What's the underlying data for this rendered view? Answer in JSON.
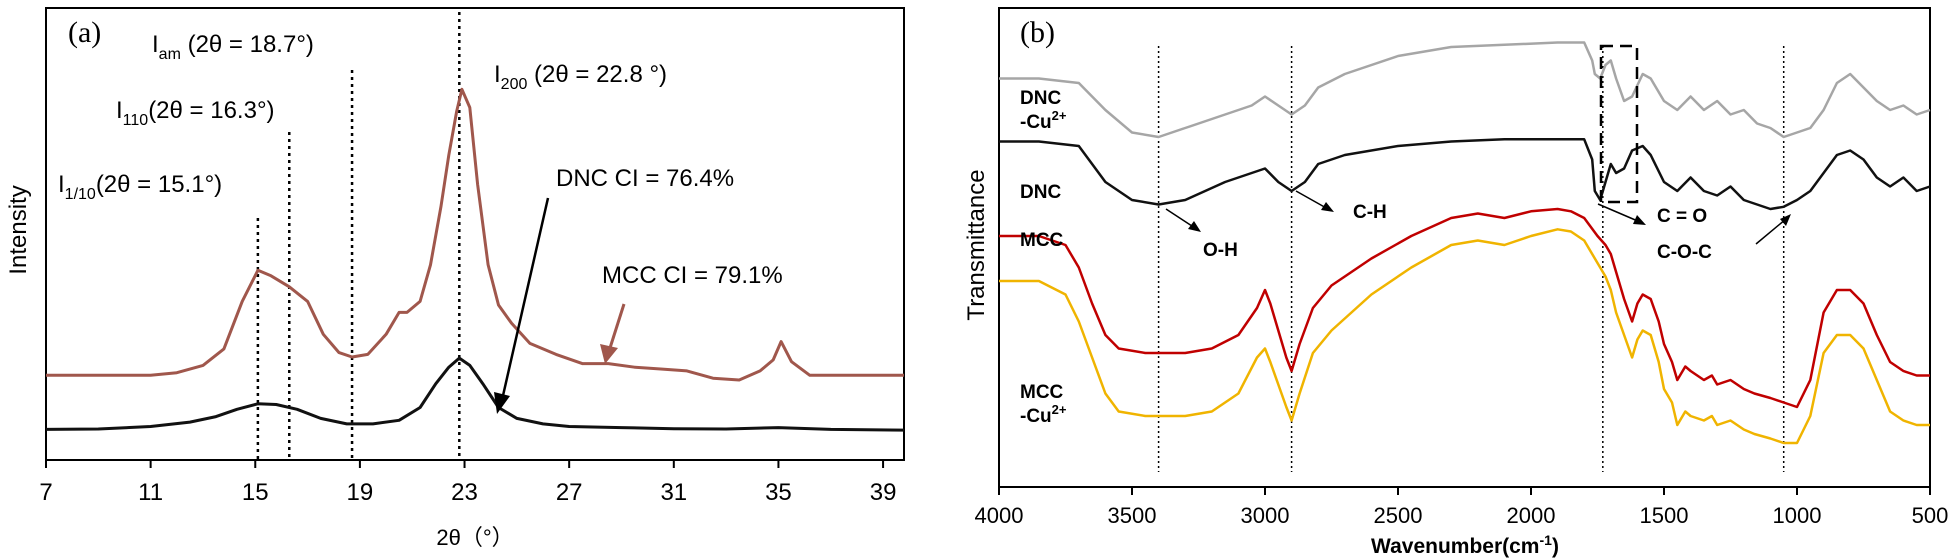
{
  "chart_data": [
    {
      "id": "a",
      "type": "line",
      "panel_label": "(a)",
      "xlabel": "2θ（°）",
      "ylabel": "Intensity",
      "xlim": [
        7,
        39.8
      ],
      "ylim": [
        0,
        1
      ],
      "x_ticks": [
        7,
        11,
        15,
        19,
        23,
        27,
        31,
        35,
        39
      ],
      "peak_markers": [
        {
          "x": 15.1,
          "label_main": "I",
          "label_sub": "1/10",
          "label_rest": "(2θ = 15.1°)"
        },
        {
          "x": 16.3,
          "label_main": "I",
          "label_sub": "110",
          "label_rest": "(2θ = 16.3°)"
        },
        {
          "x": 18.7,
          "label_main": "I",
          "label_sub": "am",
          "label_rest": " (2θ = 18.7°)"
        },
        {
          "x": 22.8,
          "label_main": "I",
          "label_sub": "200",
          "label_rest": " (2θ = 22.8 °)"
        }
      ],
      "series": [
        {
          "name": "MCC",
          "color": "#a0574c",
          "annotation": "MCC  CI = 79.1%",
          "x": [
            7,
            9,
            11,
            12,
            13,
            13.8,
            14.5,
            15.1,
            15.6,
            16.3,
            17,
            17.6,
            18.2,
            18.7,
            19.3,
            20,
            20.5,
            20.8,
            21.3,
            21.7,
            22.1,
            22.4,
            22.7,
            22.9,
            23.2,
            23.5,
            23.9,
            24.3,
            24.8,
            25.5,
            26.5,
            27.5,
            28.5,
            29.5,
            30.5,
            31.5,
            32.5,
            33.5,
            34.3,
            34.8,
            35.1,
            35.5,
            36.2,
            37,
            38,
            39,
            39.8
          ],
          "y": [
            0.218,
            0.218,
            0.218,
            0.225,
            0.245,
            0.29,
            0.42,
            0.505,
            0.49,
            0.46,
            0.42,
            0.33,
            0.28,
            0.268,
            0.275,
            0.33,
            0.39,
            0.39,
            0.42,
            0.52,
            0.68,
            0.82,
            0.94,
            1.0,
            0.95,
            0.74,
            0.52,
            0.41,
            0.36,
            0.305,
            0.275,
            0.25,
            0.25,
            0.24,
            0.235,
            0.23,
            0.21,
            0.205,
            0.23,
            0.26,
            0.31,
            0.255,
            0.218,
            0.218,
            0.218,
            0.218,
            0.218
          ]
        },
        {
          "name": "DNC",
          "color": "#111111",
          "annotation": "DNC   CI = 76.4%",
          "x": [
            7,
            9,
            11,
            12.5,
            13.5,
            14.3,
            15.1,
            15.8,
            16.6,
            17.5,
            18.5,
            19.5,
            20.5,
            21.3,
            21.9,
            22.4,
            22.8,
            23.2,
            23.7,
            24.3,
            25,
            26,
            27,
            29,
            31,
            33,
            35,
            37,
            39.8
          ],
          "y": [
            0.07,
            0.071,
            0.078,
            0.09,
            0.105,
            0.125,
            0.14,
            0.138,
            0.125,
            0.1,
            0.085,
            0.085,
            0.095,
            0.13,
            0.195,
            0.24,
            0.265,
            0.245,
            0.195,
            0.13,
            0.1,
            0.085,
            0.078,
            0.075,
            0.072,
            0.071,
            0.075,
            0.07,
            0.068
          ]
        }
      ]
    },
    {
      "id": "b",
      "type": "line",
      "panel_label": "(b)",
      "xlabel": "Wavenumber(cm",
      "xlabel_sup": "-1",
      "xlabel_end": ")",
      "ylabel": "Transmittance",
      "xlim": [
        4000,
        500
      ],
      "ylim": [
        0,
        1
      ],
      "x_ticks": [
        4000,
        3500,
        3000,
        2500,
        2000,
        1500,
        1000,
        500
      ],
      "ref_lines": [
        3400,
        2900,
        1730,
        1050
      ],
      "annotations": [
        "O-H",
        "C-H",
        "C = O",
        "C-O-C"
      ],
      "series": [
        {
          "name": "DNC-Cu2+",
          "label_line1": "DNC",
          "label_line2": "-Cu",
          "label_sup": "2+",
          "color": "#a6a6a6",
          "x": [
            4000,
            3850,
            3700,
            3600,
            3500,
            3400,
            3300,
            3150,
            3050,
            3000,
            2950,
            2900,
            2850,
            2800,
            2700,
            2500,
            2300,
            2100,
            1900,
            1800,
            1770,
            1760,
            1740,
            1720,
            1700,
            1680,
            1650,
            1620,
            1580,
            1550,
            1500,
            1450,
            1400,
            1350,
            1300,
            1250,
            1200,
            1150,
            1100,
            1050,
            1000,
            950,
            900,
            850,
            800,
            750,
            700,
            650,
            600,
            550,
            500
          ],
          "y": [
            0.87,
            0.87,
            0.86,
            0.8,
            0.75,
            0.74,
            0.76,
            0.79,
            0.81,
            0.83,
            0.81,
            0.79,
            0.81,
            0.85,
            0.88,
            0.92,
            0.94,
            0.945,
            0.95,
            0.95,
            0.91,
            0.88,
            0.87,
            0.9,
            0.91,
            0.87,
            0.82,
            0.83,
            0.88,
            0.87,
            0.82,
            0.8,
            0.83,
            0.8,
            0.82,
            0.79,
            0.8,
            0.77,
            0.76,
            0.74,
            0.75,
            0.76,
            0.8,
            0.86,
            0.88,
            0.85,
            0.82,
            0.8,
            0.81,
            0.79,
            0.8
          ]
        },
        {
          "name": "DNC",
          "label_line1": "DNC",
          "color": "#111111",
          "x": [
            4000,
            3850,
            3700,
            3600,
            3500,
            3400,
            3300,
            3150,
            3050,
            3000,
            2950,
            2900,
            2850,
            2800,
            2700,
            2500,
            2300,
            2100,
            1900,
            1800,
            1770,
            1760,
            1740,
            1720,
            1700,
            1680,
            1650,
            1620,
            1580,
            1550,
            1500,
            1450,
            1400,
            1350,
            1300,
            1250,
            1200,
            1150,
            1100,
            1050,
            1000,
            950,
            900,
            850,
            800,
            750,
            700,
            650,
            600,
            550,
            500
          ],
          "y": [
            0.73,
            0.73,
            0.72,
            0.64,
            0.6,
            0.59,
            0.6,
            0.64,
            0.66,
            0.67,
            0.64,
            0.62,
            0.64,
            0.68,
            0.7,
            0.72,
            0.73,
            0.735,
            0.735,
            0.735,
            0.69,
            0.62,
            0.6,
            0.64,
            0.68,
            0.66,
            0.67,
            0.71,
            0.72,
            0.7,
            0.64,
            0.62,
            0.65,
            0.62,
            0.61,
            0.63,
            0.6,
            0.59,
            0.58,
            0.585,
            0.6,
            0.62,
            0.66,
            0.7,
            0.71,
            0.69,
            0.65,
            0.63,
            0.65,
            0.62,
            0.63
          ]
        },
        {
          "name": "MCC",
          "label_line1": "MCC",
          "color": "#c00000",
          "x": [
            4000,
            3850,
            3750,
            3700,
            3650,
            3600,
            3550,
            3450,
            3300,
            3200,
            3100,
            3030,
            3000,
            2980,
            2950,
            2920,
            2900,
            2870,
            2820,
            2750,
            2600,
            2450,
            2300,
            2200,
            2100,
            2000,
            1900,
            1850,
            1800,
            1750,
            1720,
            1700,
            1680,
            1650,
            1620,
            1600,
            1580,
            1550,
            1520,
            1500,
            1470,
            1450,
            1420,
            1400,
            1350,
            1320,
            1300,
            1250,
            1200,
            1160,
            1100,
            1050,
            1000,
            950,
            900,
            850,
            800,
            750,
            700,
            650,
            600,
            550,
            500
          ],
          "y": [
            0.52,
            0.52,
            0.5,
            0.45,
            0.37,
            0.3,
            0.27,
            0.26,
            0.26,
            0.27,
            0.3,
            0.36,
            0.4,
            0.37,
            0.31,
            0.25,
            0.22,
            0.28,
            0.36,
            0.41,
            0.47,
            0.52,
            0.56,
            0.57,
            0.56,
            0.575,
            0.58,
            0.575,
            0.56,
            0.52,
            0.5,
            0.48,
            0.44,
            0.38,
            0.33,
            0.37,
            0.39,
            0.38,
            0.33,
            0.28,
            0.24,
            0.2,
            0.23,
            0.22,
            0.2,
            0.21,
            0.19,
            0.2,
            0.18,
            0.17,
            0.16,
            0.15,
            0.14,
            0.2,
            0.35,
            0.4,
            0.4,
            0.37,
            0.3,
            0.24,
            0.22,
            0.21,
            0.21
          ]
        },
        {
          "name": "MCC-Cu2+",
          "label_line1": "MCC",
          "label_line2": "-Cu",
          "label_sup": "2+",
          "color": "#f0b400",
          "x": [
            4000,
            3850,
            3750,
            3700,
            3650,
            3600,
            3550,
            3450,
            3300,
            3200,
            3100,
            3030,
            3000,
            2980,
            2950,
            2920,
            2900,
            2870,
            2820,
            2750,
            2600,
            2450,
            2300,
            2200,
            2100,
            2000,
            1900,
            1850,
            1800,
            1750,
            1720,
            1700,
            1680,
            1650,
            1620,
            1600,
            1580,
            1550,
            1520,
            1500,
            1470,
            1450,
            1420,
            1400,
            1350,
            1320,
            1300,
            1250,
            1200,
            1160,
            1100,
            1050,
            1000,
            950,
            900,
            850,
            800,
            750,
            700,
            650,
            600,
            550,
            500
          ],
          "y": [
            0.42,
            0.42,
            0.39,
            0.33,
            0.25,
            0.17,
            0.13,
            0.12,
            0.12,
            0.13,
            0.17,
            0.25,
            0.27,
            0.24,
            0.19,
            0.14,
            0.11,
            0.17,
            0.26,
            0.31,
            0.39,
            0.45,
            0.5,
            0.51,
            0.5,
            0.52,
            0.535,
            0.53,
            0.51,
            0.46,
            0.43,
            0.4,
            0.35,
            0.3,
            0.25,
            0.29,
            0.31,
            0.3,
            0.24,
            0.18,
            0.15,
            0.1,
            0.13,
            0.12,
            0.11,
            0.12,
            0.1,
            0.11,
            0.09,
            0.08,
            0.07,
            0.06,
            0.06,
            0.12,
            0.26,
            0.3,
            0.3,
            0.27,
            0.2,
            0.13,
            0.11,
            0.1,
            0.1
          ]
        }
      ]
    }
  ]
}
